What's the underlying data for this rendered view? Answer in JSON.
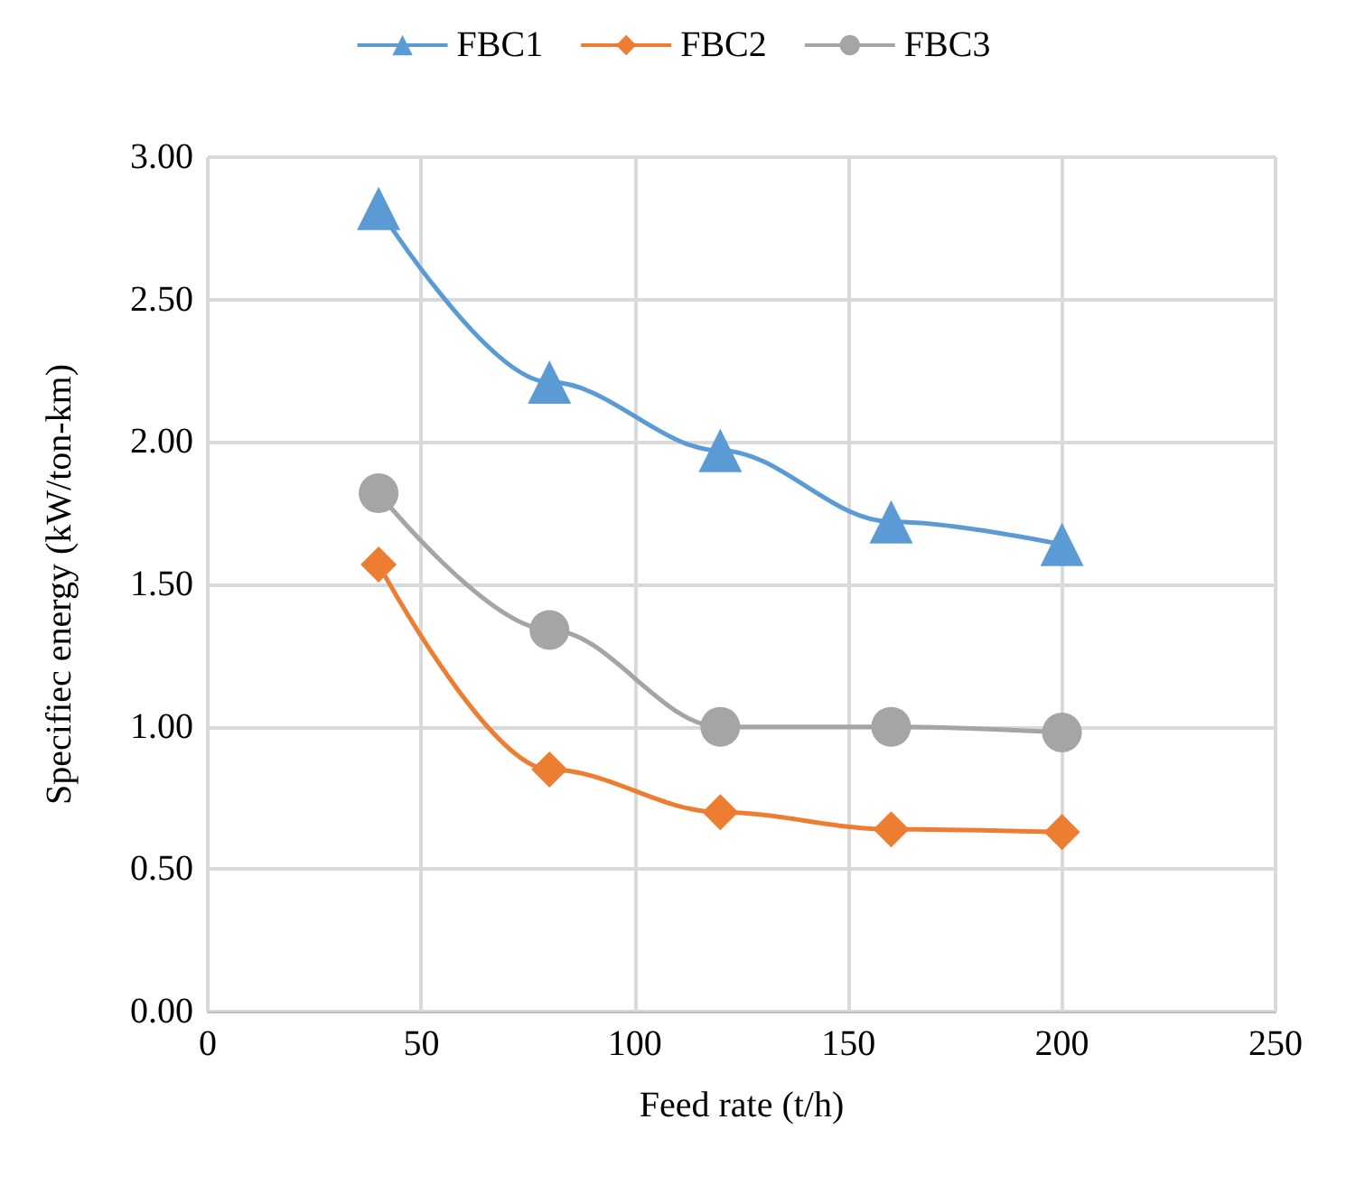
{
  "chart_data": {
    "type": "line",
    "xlabel": "Feed rate (t/h)",
    "ylabel": "Specifiec energy (kW/ton-km)",
    "x": [
      40,
      80,
      120,
      160,
      200
    ],
    "series": [
      {
        "name": "FBC1",
        "color": "#5b9bd5",
        "marker": "triangle",
        "values": [
          2.82,
          2.21,
          1.97,
          1.72,
          1.64
        ]
      },
      {
        "name": "FBC2",
        "color": "#ed7d31",
        "marker": "diamond",
        "values": [
          1.57,
          0.85,
          0.7,
          0.64,
          0.63
        ]
      },
      {
        "name": "FBC3",
        "color": "#a5a5a5",
        "marker": "circle",
        "values": [
          1.82,
          1.34,
          1.0,
          1.0,
          0.98
        ]
      }
    ],
    "xlim": [
      0,
      250
    ],
    "xticks": [
      0,
      50,
      100,
      150,
      200,
      250
    ],
    "ylim": [
      0,
      3
    ],
    "yticks": [
      {
        "value": 0,
        "label": "0.00"
      },
      {
        "value": 0.5,
        "label": "0.50"
      },
      {
        "value": 1,
        "label": "1.00"
      },
      {
        "value": 1.5,
        "label": "1.50"
      },
      {
        "value": 2,
        "label": "2.00"
      },
      {
        "value": 2.5,
        "label": "2.50"
      },
      {
        "value": 3,
        "label": "3.00"
      }
    ],
    "grid": true,
    "legend": "top"
  }
}
